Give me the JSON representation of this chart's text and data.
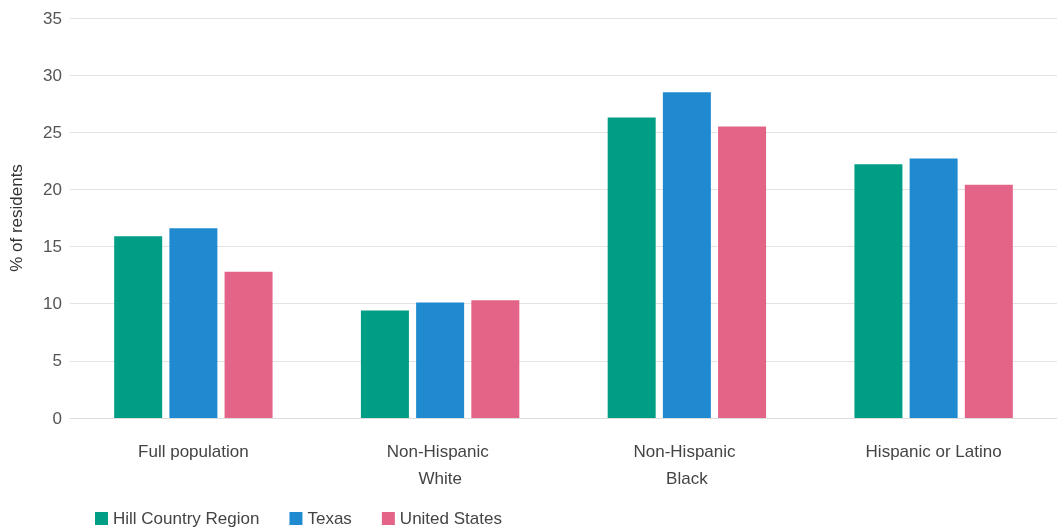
{
  "chart_data": {
    "type": "bar",
    "ylabel": "% of residents",
    "categories": [
      "Full population",
      "Non-Hispanic White",
      "Non-Hispanic Black",
      "Hispanic or Latino"
    ],
    "series": [
      {
        "name": "Hill Country Region",
        "color": "#009e84",
        "values": [
          15.9,
          9.4,
          26.3,
          22.2
        ]
      },
      {
        "name": "Texas",
        "color": "#1f8ad0",
        "values": [
          16.6,
          10.1,
          28.5,
          22.7
        ]
      },
      {
        "name": "United States",
        "color": "#e46488",
        "values": [
          12.8,
          10.3,
          25.5,
          20.4
        ]
      }
    ],
    "ylim": [
      0,
      35
    ],
    "yticks": [
      0,
      5,
      10,
      15,
      20,
      25,
      30,
      35
    ],
    "grid": "y",
    "legend": "bottom left"
  }
}
